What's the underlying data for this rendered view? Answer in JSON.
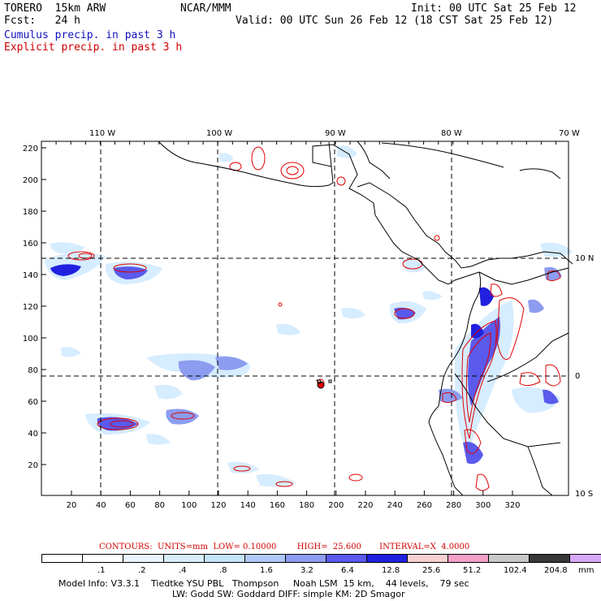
{
  "header": {
    "model_name": "TORERO  15km ARW",
    "center": "NCAR/MMM",
    "init": "Init: 00 UTC Sat 25 Feb 12",
    "fcst": "Fcst:   24 h",
    "valid": "Valid: 00 UTC Sun 26 Feb 12 (18 CST Sat 25 Feb 12)",
    "field_cumulus": "Cumulus precip. in past 3 h",
    "field_explicit": "Explicit precip. in past 3 h"
  },
  "map": {
    "lon_labels": [
      "110 W",
      "100 W",
      "90 W",
      "80 W",
      "70 W"
    ],
    "lat_labels": [
      "10 N",
      "0",
      "10 S"
    ],
    "y_ticks": [
      "220",
      "200",
      "180",
      "160",
      "140",
      "120",
      "100",
      "80",
      "60",
      "40",
      "20"
    ],
    "x_ticks": [
      "20",
      "40",
      "60",
      "80",
      "100",
      "120",
      "140",
      "160",
      "180",
      "200",
      "220",
      "240",
      "260",
      "280",
      "300",
      "320"
    ],
    "colors": {
      "coast": "#000000",
      "cumulus_light": "#d6ecff",
      "cumulus_mid": "#8c9cf0",
      "cumulus_dark": "#2020e0",
      "explicit": "#e00000"
    }
  },
  "contour_info": {
    "label": "CONTOURS:  UNITS=mm  LOW= 0.10000        HIGH=  25.600       INTERVAL=X  4.0000"
  },
  "legend": {
    "colors": [
      "#ffffff",
      "#ffffff",
      "#eaf5ff",
      "#d8eefc",
      "#c4e4fa",
      "#b0c8f8",
      "#8c9cf0",
      "#5a5aec",
      "#2020e0",
      "#f8d0d0",
      "#f4a0c8",
      "#c8c8c8",
      "#383838",
      "#d8a8f8"
    ],
    "labels": [
      ".1",
      ".2",
      ".4",
      ".8",
      "1.6",
      "3.2",
      "6.4",
      "12.8",
      "25.6",
      "51.2",
      "102.4",
      "204.8"
    ],
    "unit": "mm"
  },
  "footer": {
    "line1": "Model Info: V3.3.1    Tiedtke YSU PBL   Thompson     Noah LSM  15 km,    44 levels,    79 sec",
    "line2": "LW: Godd SW: Goddard DIFF: simple KM: 2D Smagor"
  }
}
